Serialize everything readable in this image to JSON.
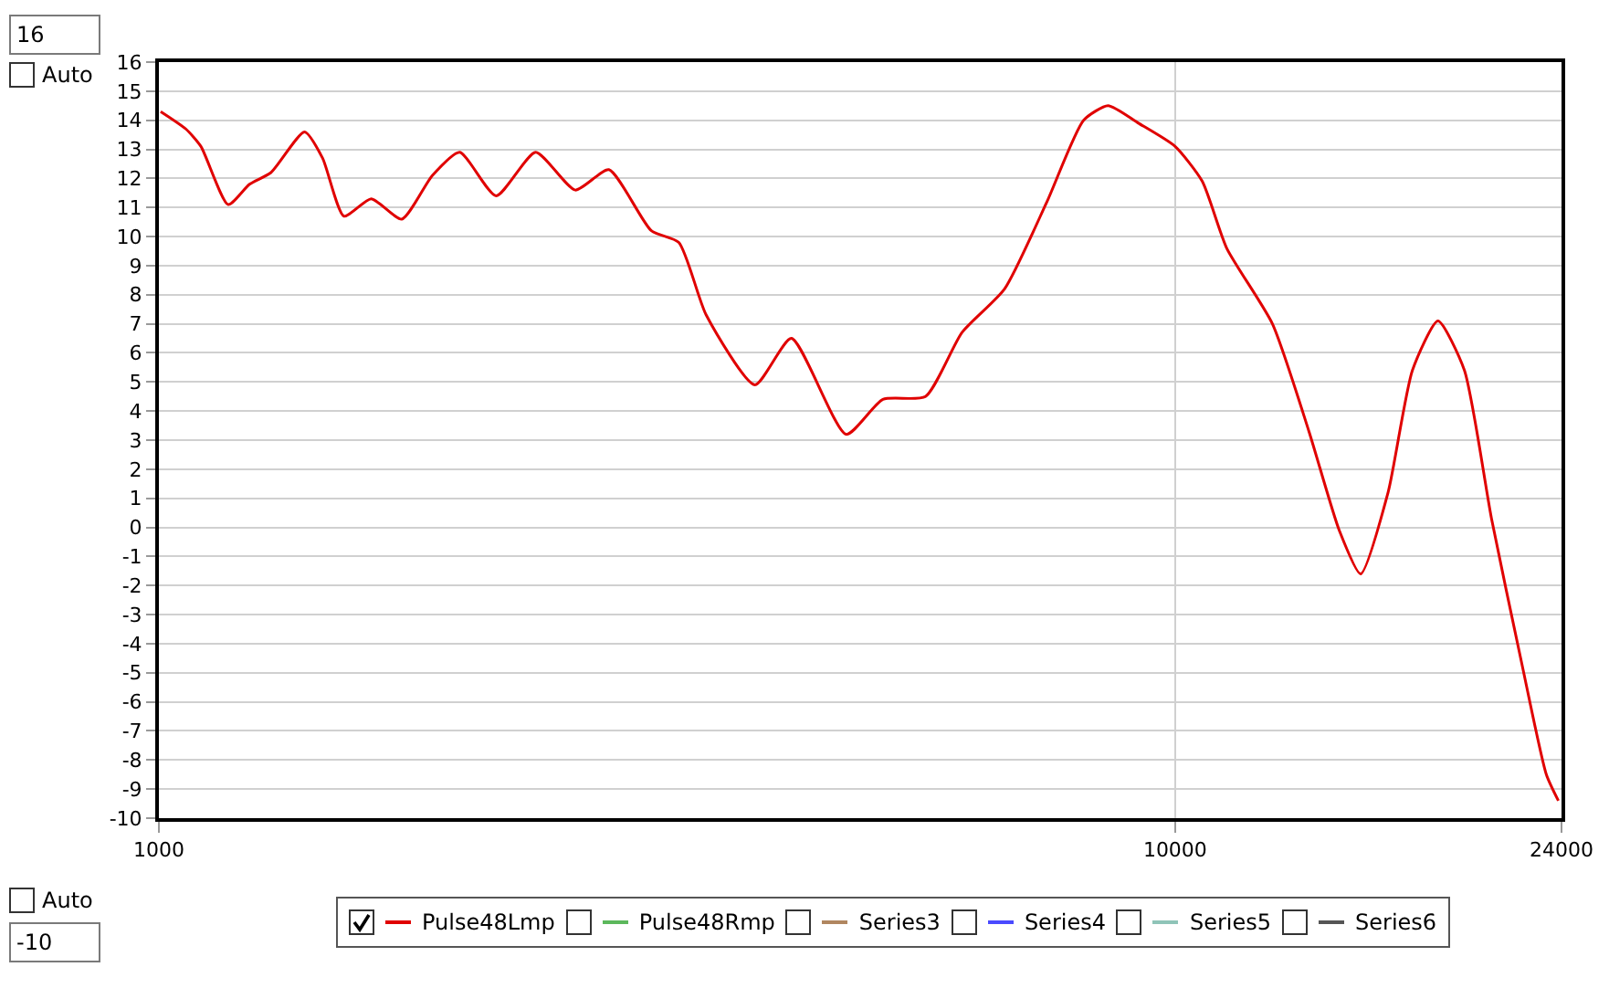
{
  "chart_data": {
    "type": "line",
    "x": [
      1004,
      1063,
      1100,
      1170,
      1228,
      1289,
      1391,
      1449,
      1521,
      1618,
      1734,
      1858,
      1977,
      2147,
      2348,
      2569,
      2772,
      3052,
      3248,
      3456,
      3859,
      4192,
      4746,
      5157,
      5680,
      6170,
      6795,
      7480,
      8127,
      8590,
      9202,
      10000,
      10634,
      11240,
      12466,
      13542,
      14503,
      15223,
      16200,
      17120,
      18140,
      19260,
      20480,
      21940,
      23190,
      23830
    ],
    "series": [
      {
        "name": "Pulse48Lmp",
        "color": "#e00000",
        "values": [
          14.3,
          13.7,
          13.1,
          11.1,
          11.8,
          12.2,
          13.6,
          12.7,
          10.7,
          11.3,
          10.6,
          12.1,
          12.9,
          11.4,
          12.9,
          11.6,
          12.3,
          10.2,
          9.8,
          7.3,
          4.9,
          6.5,
          3.2,
          4.4,
          4.5,
          6.7,
          8.2,
          11.2,
          14.0,
          14.5,
          13.9,
          13.1,
          11.9,
          9.6,
          7.0,
          3.3,
          -0.1,
          -1.6,
          1.2,
          5.4,
          7.1,
          5.4,
          0.3,
          -4.7,
          -8.5,
          -9.4
        ]
      },
      {
        "name": "Pulse48Rmp",
        "color": "#5cb85c",
        "values": [
          null,
          null,
          null,
          null,
          null,
          null,
          null,
          null,
          null,
          null,
          null,
          null,
          null,
          null,
          null,
          null,
          null,
          null,
          null,
          null,
          null,
          null,
          null,
          null,
          null,
          null,
          null,
          null,
          null,
          null,
          null,
          null,
          null,
          null,
          null,
          null,
          null,
          null,
          null,
          null,
          null,
          null,
          null,
          null,
          null,
          null
        ]
      },
      {
        "name": "Series3",
        "color": "#b08660",
        "values": [
          null,
          null,
          null,
          null,
          null,
          null,
          null,
          null,
          null,
          null,
          null,
          null,
          null,
          null,
          null,
          null,
          null,
          null,
          null,
          null,
          null,
          null,
          null,
          null,
          null,
          null,
          null,
          null,
          null,
          null,
          null,
          null,
          null,
          null,
          null,
          null,
          null,
          null,
          null,
          null,
          null,
          null,
          null,
          null,
          null,
          null
        ]
      },
      {
        "name": "Series4",
        "color": "#4a4aff",
        "values": [
          null,
          null,
          null,
          null,
          null,
          null,
          null,
          null,
          null,
          null,
          null,
          null,
          null,
          null,
          null,
          null,
          null,
          null,
          null,
          null,
          null,
          null,
          null,
          null,
          null,
          null,
          null,
          null,
          null,
          null,
          null,
          null,
          null,
          null,
          null,
          null,
          null,
          null,
          null,
          null,
          null,
          null,
          null,
          null,
          null,
          null
        ]
      },
      {
        "name": "Series5",
        "color": "#8fc4b8",
        "values": [
          null,
          null,
          null,
          null,
          null,
          null,
          null,
          null,
          null,
          null,
          null,
          null,
          null,
          null,
          null,
          null,
          null,
          null,
          null,
          null,
          null,
          null,
          null,
          null,
          null,
          null,
          null,
          null,
          null,
          null,
          null,
          null,
          null,
          null,
          null,
          null,
          null,
          null,
          null,
          null,
          null,
          null,
          null,
          null,
          null,
          null
        ]
      },
      {
        "name": "Series6",
        "color": "#555555",
        "values": [
          null,
          null,
          null,
          null,
          null,
          null,
          null,
          null,
          null,
          null,
          null,
          null,
          null,
          null,
          null,
          null,
          null,
          null,
          null,
          null,
          null,
          null,
          null,
          null,
          null,
          null,
          null,
          null,
          null,
          null,
          null,
          null,
          null,
          null,
          null,
          null,
          null,
          null,
          null,
          null,
          null,
          null,
          null,
          null,
          null,
          null
        ]
      }
    ],
    "log": "x",
    "xlim": [
      1000,
      24000
    ],
    "xticks": [
      1000,
      10000,
      24000
    ],
    "ylim": [
      -10,
      16
    ],
    "yticks": [
      -10,
      -9,
      -8,
      -7,
      -6,
      -5,
      -4,
      -3,
      -2,
      -1,
      0,
      1,
      2,
      3,
      4,
      5,
      6,
      7,
      8,
      9,
      10,
      11,
      12,
      13,
      14,
      15,
      16
    ],
    "grid": true,
    "legend": "bottom",
    "marker": "none",
    "line_style": "solid",
    "annotations": [
      "16",
      "Auto",
      "Auto",
      "-10"
    ]
  }
}
